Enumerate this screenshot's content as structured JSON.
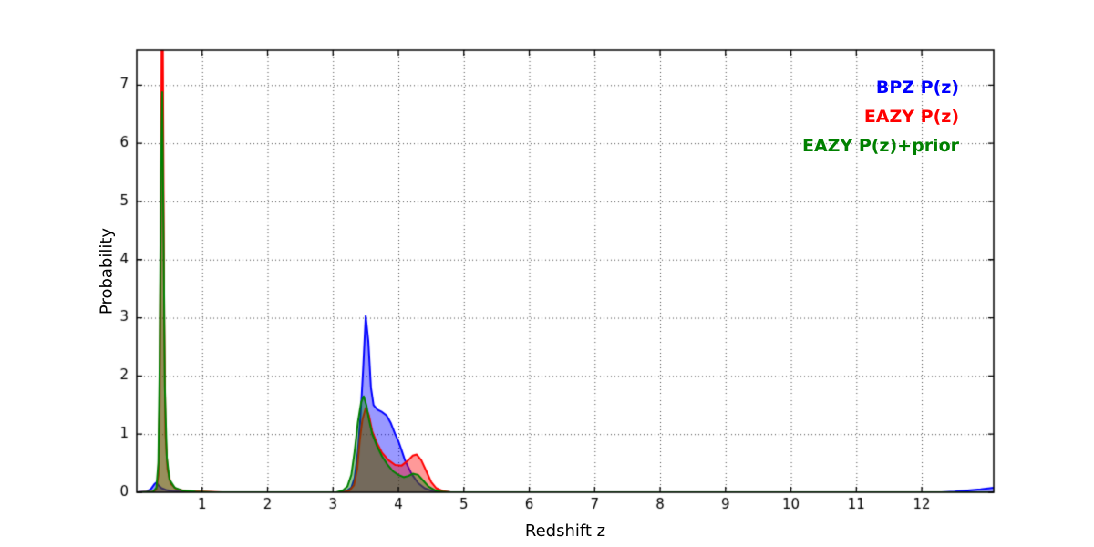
{
  "chart_data": {
    "type": "line",
    "title": "",
    "xlabel": "Redshift z",
    "ylabel": "Probability",
    "xlim": [
      0,
      13.1
    ],
    "ylim": [
      0,
      7.6
    ],
    "xticks": [
      1,
      2,
      3,
      4,
      5,
      6,
      7,
      8,
      9,
      10,
      11,
      12
    ],
    "yticks": [
      0,
      1,
      2,
      3,
      4,
      5,
      6,
      7
    ],
    "grid": true,
    "grid_style": "dotted",
    "legend_position": "upper right",
    "axis_color": "#000000",
    "grid_color": "#444444",
    "fill_alpha": 0.4,
    "series": [
      {
        "name": "BPZ P(z)",
        "color": "#0000ff",
        "points": [
          [
            0,
            0
          ],
          [
            0.15,
            0.01
          ],
          [
            0.22,
            0.06
          ],
          [
            0.27,
            0.14
          ],
          [
            0.3,
            0.17
          ],
          [
            0.33,
            0.12
          ],
          [
            0.38,
            0.07
          ],
          [
            0.45,
            0.04
          ],
          [
            0.55,
            0.02
          ],
          [
            0.7,
            0.01
          ],
          [
            1.0,
            0
          ],
          [
            3.1,
            0
          ],
          [
            3.2,
            0.02
          ],
          [
            3.28,
            0.08
          ],
          [
            3.33,
            0.25
          ],
          [
            3.38,
            0.7
          ],
          [
            3.42,
            1.3
          ],
          [
            3.46,
            2.1
          ],
          [
            3.5,
            3.03
          ],
          [
            3.54,
            2.6
          ],
          [
            3.58,
            1.8
          ],
          [
            3.62,
            1.5
          ],
          [
            3.68,
            1.42
          ],
          [
            3.75,
            1.38
          ],
          [
            3.82,
            1.32
          ],
          [
            3.88,
            1.2
          ],
          [
            3.95,
            1.0
          ],
          [
            4.0,
            0.88
          ],
          [
            4.05,
            0.72
          ],
          [
            4.1,
            0.55
          ],
          [
            4.2,
            0.32
          ],
          [
            4.3,
            0.16
          ],
          [
            4.4,
            0.07
          ],
          [
            4.5,
            0.03
          ],
          [
            4.6,
            0.01
          ],
          [
            4.8,
            0
          ],
          [
            12.3,
            0
          ],
          [
            12.5,
            0.01
          ],
          [
            12.7,
            0.03
          ],
          [
            12.9,
            0.05
          ],
          [
            13.1,
            0.08
          ]
        ]
      },
      {
        "name": "EAZY P(z)",
        "color": "#ff0000",
        "points": [
          [
            0,
            0
          ],
          [
            0.25,
            0.01
          ],
          [
            0.3,
            0.05
          ],
          [
            0.33,
            0.3
          ],
          [
            0.35,
            1.5
          ],
          [
            0.37,
            5.0
          ],
          [
            0.38,
            7.6
          ],
          [
            0.4,
            7.6
          ],
          [
            0.42,
            3.0
          ],
          [
            0.44,
            1.0
          ],
          [
            0.47,
            0.4
          ],
          [
            0.52,
            0.15
          ],
          [
            0.6,
            0.06
          ],
          [
            0.75,
            0.02
          ],
          [
            1.0,
            0.01
          ],
          [
            1.3,
            0
          ],
          [
            3.15,
            0
          ],
          [
            3.25,
            0.03
          ],
          [
            3.32,
            0.12
          ],
          [
            3.37,
            0.4
          ],
          [
            3.41,
            0.9
          ],
          [
            3.45,
            1.25
          ],
          [
            3.5,
            1.45
          ],
          [
            3.55,
            1.32
          ],
          [
            3.6,
            1.05
          ],
          [
            3.67,
            0.85
          ],
          [
            3.75,
            0.68
          ],
          [
            3.85,
            0.55
          ],
          [
            3.95,
            0.47
          ],
          [
            4.05,
            0.46
          ],
          [
            4.15,
            0.55
          ],
          [
            4.22,
            0.63
          ],
          [
            4.28,
            0.65
          ],
          [
            4.35,
            0.55
          ],
          [
            4.42,
            0.38
          ],
          [
            4.5,
            0.18
          ],
          [
            4.58,
            0.07
          ],
          [
            4.68,
            0.02
          ],
          [
            4.8,
            0
          ],
          [
            13.1,
            0
          ]
        ]
      },
      {
        "name": "EAZY P(z)+prior",
        "color": "#008000",
        "points": [
          [
            0,
            0
          ],
          [
            0.25,
            0.01
          ],
          [
            0.3,
            0.08
          ],
          [
            0.33,
            0.5
          ],
          [
            0.35,
            2.2
          ],
          [
            0.37,
            5.5
          ],
          [
            0.39,
            6.88
          ],
          [
            0.41,
            4.5
          ],
          [
            0.43,
            1.8
          ],
          [
            0.46,
            0.6
          ],
          [
            0.5,
            0.22
          ],
          [
            0.58,
            0.08
          ],
          [
            0.7,
            0.03
          ],
          [
            0.9,
            0.01
          ],
          [
            1.2,
            0
          ],
          [
            3.05,
            0
          ],
          [
            3.15,
            0.03
          ],
          [
            3.22,
            0.1
          ],
          [
            3.28,
            0.3
          ],
          [
            3.33,
            0.7
          ],
          [
            3.38,
            1.2
          ],
          [
            3.43,
            1.55
          ],
          [
            3.47,
            1.65
          ],
          [
            3.51,
            1.5
          ],
          [
            3.55,
            1.25
          ],
          [
            3.6,
            1.0
          ],
          [
            3.67,
            0.8
          ],
          [
            3.75,
            0.62
          ],
          [
            3.83,
            0.48
          ],
          [
            3.92,
            0.36
          ],
          [
            4.0,
            0.3
          ],
          [
            4.08,
            0.26
          ],
          [
            4.15,
            0.28
          ],
          [
            4.22,
            0.32
          ],
          [
            4.3,
            0.3
          ],
          [
            4.38,
            0.2
          ],
          [
            4.46,
            0.1
          ],
          [
            4.55,
            0.04
          ],
          [
            4.65,
            0.01
          ],
          [
            4.8,
            0
          ],
          [
            13.1,
            0
          ]
        ]
      }
    ]
  }
}
